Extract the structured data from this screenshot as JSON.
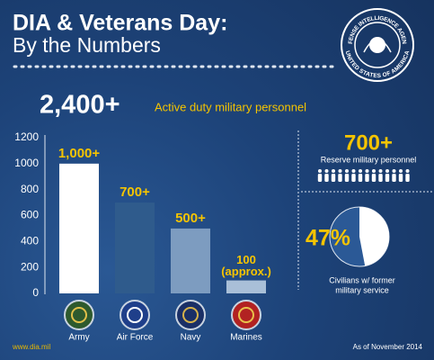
{
  "header": {
    "title": "DIA & Veterans Day:",
    "subtitle": "By the Numbers",
    "seal_top": "DEFENSE INTELLIGENCE AGENCY",
    "seal_bottom": "UNITED STATES OF AMERICA"
  },
  "active": {
    "value": "2,400+",
    "label": "Active duty military personnel"
  },
  "reserve": {
    "value": "700+",
    "label": "Reserve military personnel"
  },
  "chart_data": [
    {
      "type": "bar",
      "categories": [
        "Army",
        "Air Force",
        "Navy",
        "Marines"
      ],
      "values": [
        1000,
        700,
        500,
        100
      ],
      "value_labels": [
        "1,000+",
        "700+",
        "500+",
        "100 (approx.)"
      ],
      "colors": [
        "#ffffff",
        "#2f5b8c",
        "#7d9cc0",
        "#a9bfd8"
      ],
      "ylim": [
        0,
        1200
      ],
      "yticks": [
        0,
        200,
        400,
        600,
        800,
        1000,
        1200
      ]
    },
    {
      "type": "pie",
      "values": [
        47
      ],
      "value_labels": [
        "47%"
      ],
      "color": "#ffffff",
      "label": [
        "Civilians w/ former",
        "military service"
      ]
    }
  ],
  "footer": {
    "left": "www.dia.mil",
    "right": "As of November 2014"
  }
}
